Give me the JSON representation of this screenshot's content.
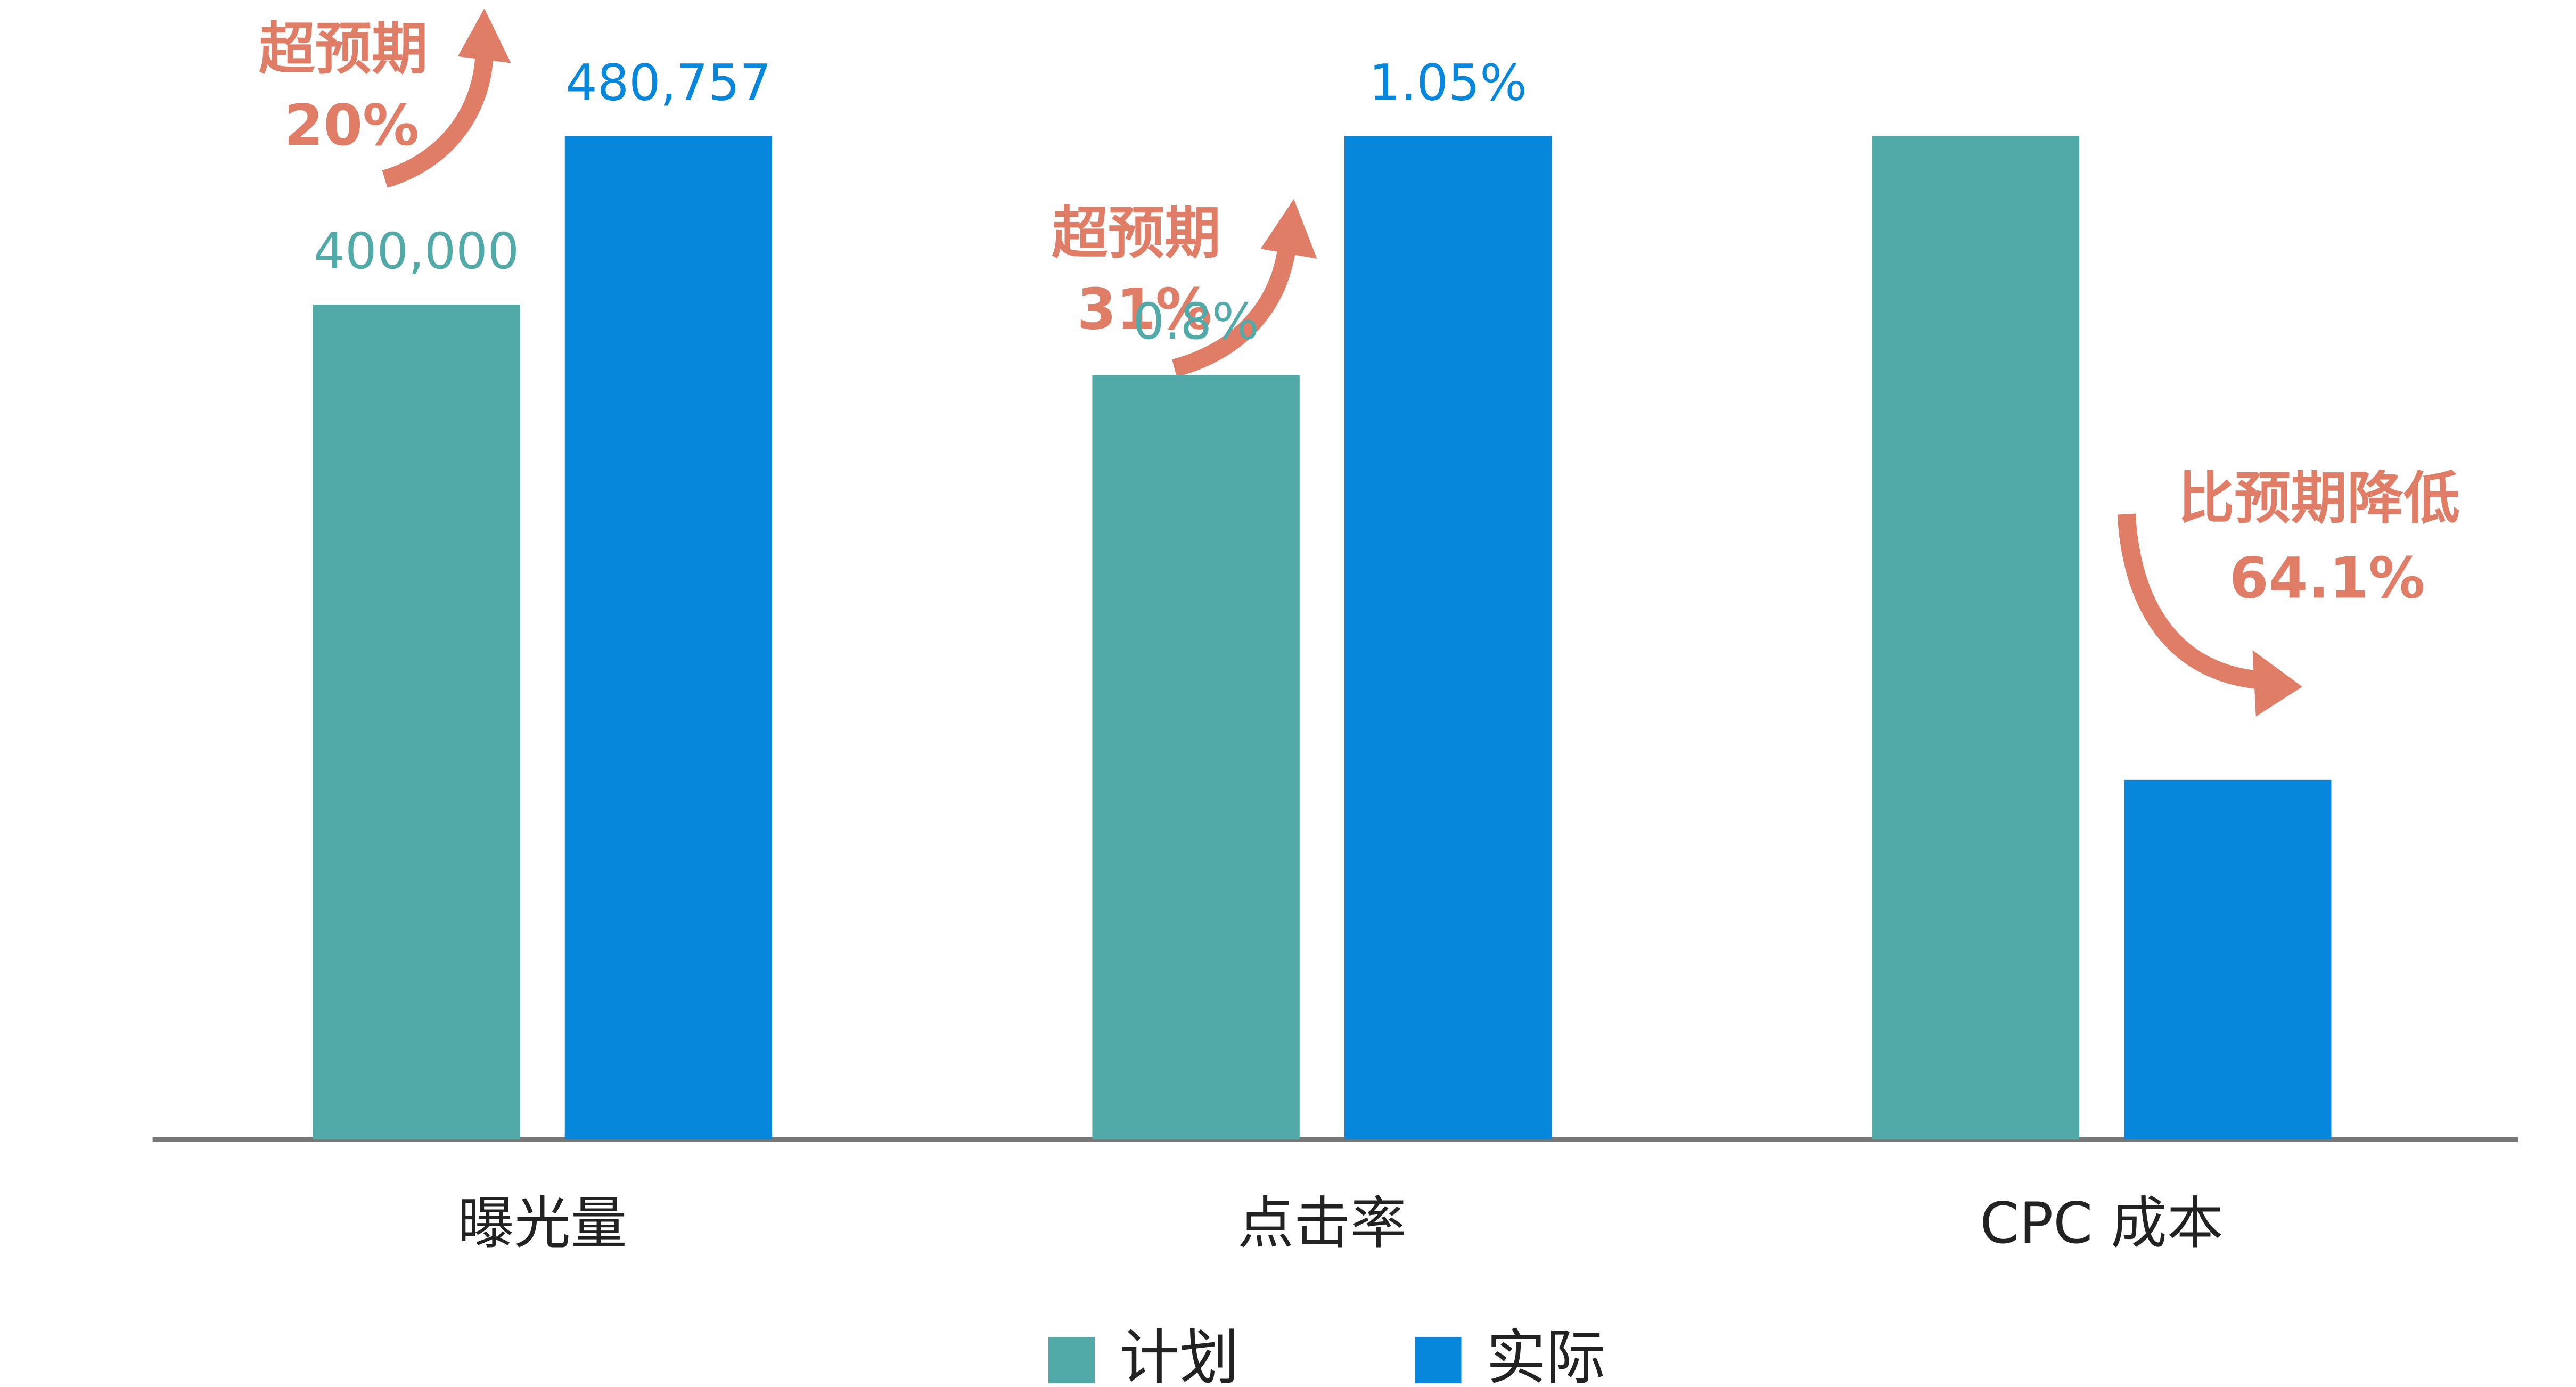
{
  "chart_data": {
    "type": "bar",
    "categories": [
      "曝光量",
      "点击率",
      "CPC 成本"
    ],
    "series": [
      {
        "name": "计划",
        "color": "#52aaa8",
        "values": [
          400000,
          0.8,
          1.2
        ],
        "value_labels": [
          "400,000",
          "0.8%",
          null
        ]
      },
      {
        "name": "实际",
        "color": "#0787db",
        "values": [
          480757,
          1.05,
          0.43
        ],
        "value_labels": [
          "480,757",
          "1.05%",
          null
        ]
      }
    ],
    "annotations": [
      {
        "text": "超预期",
        "value_label": "20%"
      },
      {
        "text": "超预期",
        "value_label": "31%"
      },
      {
        "text": "比预期降低",
        "value_label": "64.1%"
      }
    ],
    "legend": "bottom"
  }
}
